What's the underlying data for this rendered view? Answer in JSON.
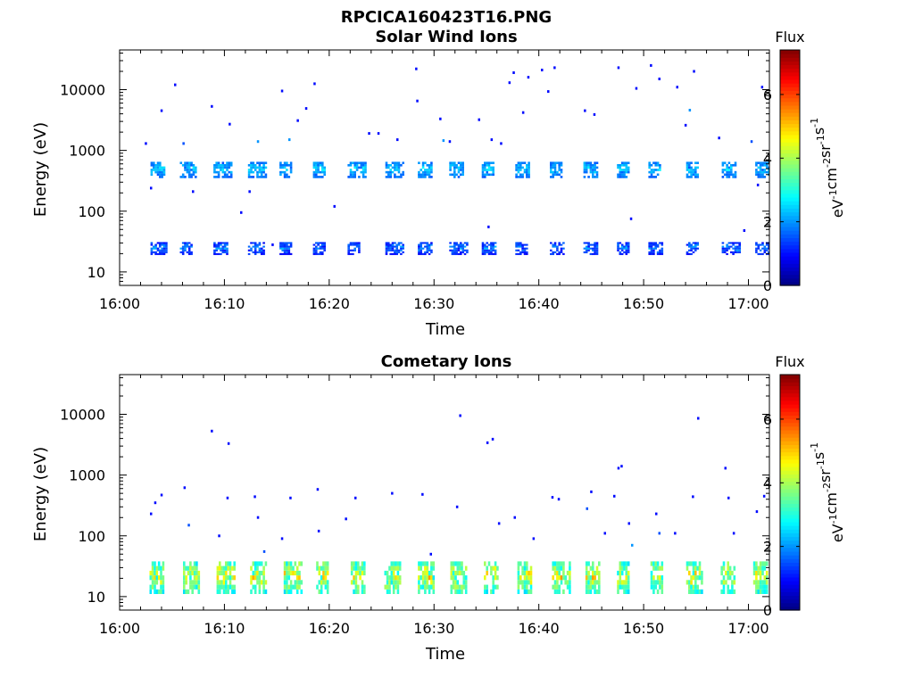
{
  "figure_title": "RPCICA160423T16.PNG",
  "chart_data": [
    {
      "type": "heatmap",
      "title": "Solar Wind Ions",
      "xlabel": "Time",
      "ylabel": "Energy (eV)",
      "x_ticks": [
        "16:00",
        "16:10",
        "16:20",
        "16:30",
        "16:40",
        "16:50",
        "17:00"
      ],
      "x_range": [
        "16:00",
        "17:02"
      ],
      "y_scale": "log",
      "y_range": [
        6,
        45000
      ],
      "y_ticks": [
        "10",
        "100",
        "1000",
        "10000"
      ],
      "colorbar": {
        "label": "Flux",
        "unit_text": "eV-1cm-2sr-1s-1",
        "range": [
          0,
          7.4
        ],
        "ticks": [
          "0",
          "2",
          "4",
          "6"
        ]
      },
      "bursts_minutes": [
        3.5,
        6.3,
        9.5,
        12.8,
        15.8,
        19.0,
        22.3,
        25.9,
        29.0,
        32.0,
        35.1,
        38.3,
        41.6,
        44.8,
        48.0,
        51.0,
        54.6,
        58.0,
        61.2
      ],
      "bands": [
        {
          "energy_low": 19,
          "energy_high": 31,
          "value_range": [
            0.8,
            2.6
          ],
          "note": "low energy band"
        },
        {
          "energy_low": 350,
          "energy_high": 650,
          "value_range": [
            1.5,
            3.0
          ],
          "note": "main solar wind band"
        }
      ],
      "scatter_points": [
        [
          2.5,
          1300,
          1
        ],
        [
          3.0,
          240,
          1
        ],
        [
          4.0,
          4500,
          1
        ],
        [
          5.3,
          12000,
          1
        ],
        [
          6.1,
          1300,
          1.5
        ],
        [
          8.8,
          5300,
          1
        ],
        [
          7.0,
          210,
          1
        ],
        [
          10.5,
          2700,
          1
        ],
        [
          11.6,
          95,
          1
        ],
        [
          12.4,
          210,
          1
        ],
        [
          13.2,
          1400,
          2
        ],
        [
          14.6,
          28,
          1
        ],
        [
          15.5,
          9500,
          1
        ],
        [
          16.2,
          1500,
          2
        ],
        [
          17.0,
          3100,
          1
        ],
        [
          17.8,
          4900,
          1
        ],
        [
          18.6,
          12500,
          1
        ],
        [
          20.5,
          120,
          1
        ],
        [
          23.8,
          1900,
          1
        ],
        [
          24.7,
          1900,
          1
        ],
        [
          26.5,
          1500,
          1
        ],
        [
          28.3,
          22000,
          1
        ],
        [
          28.4,
          6500,
          1
        ],
        [
          30.6,
          3300,
          1
        ],
        [
          30.9,
          1450,
          2
        ],
        [
          31.5,
          1400,
          1
        ],
        [
          34.3,
          3200,
          1
        ],
        [
          35.2,
          55,
          1
        ],
        [
          35.5,
          1500,
          1
        ],
        [
          36.4,
          1300,
          1
        ],
        [
          37.2,
          13000,
          1
        ],
        [
          37.6,
          19000,
          1
        ],
        [
          38.5,
          4200,
          1
        ],
        [
          39.0,
          16000,
          1
        ],
        [
          40.3,
          21000,
          1
        ],
        [
          40.9,
          9300,
          1
        ],
        [
          41.5,
          23000,
          1
        ],
        [
          44.4,
          4500,
          1
        ],
        [
          45.3,
          3900,
          1
        ],
        [
          47.6,
          23000,
          1
        ],
        [
          48.8,
          75,
          1
        ],
        [
          49.3,
          10500,
          1
        ],
        [
          50.7,
          25000,
          1
        ],
        [
          51.5,
          15000,
          1
        ],
        [
          53.2,
          11000,
          1
        ],
        [
          54.0,
          2600,
          1
        ],
        [
          54.4,
          4600,
          2
        ],
        [
          54.8,
          20000,
          1
        ],
        [
          57.2,
          1600,
          1
        ],
        [
          59.6,
          48,
          1
        ],
        [
          60.3,
          1400,
          1.5
        ],
        [
          60.9,
          270,
          1
        ],
        [
          61.3,
          11000,
          1
        ]
      ]
    },
    {
      "type": "heatmap",
      "title": "Cometary Ions",
      "xlabel": "Time",
      "ylabel": "Energy (eV)",
      "x_ticks": [
        "16:00",
        "16:10",
        "16:20",
        "16:30",
        "16:40",
        "16:50",
        "17:00"
      ],
      "x_range": [
        "16:00",
        "17:02"
      ],
      "y_scale": "log",
      "y_range": [
        6,
        45000
      ],
      "y_ticks": [
        "10",
        "100",
        "1000",
        "10000"
      ],
      "colorbar": {
        "label": "Flux",
        "unit_text": "eV-1cm-2sr-1s-1",
        "range": [
          0,
          7.4
        ],
        "ticks": [
          "0",
          "2",
          "4",
          "6"
        ]
      },
      "bursts_minutes": [
        3.4,
        6.6,
        9.8,
        13.0,
        16.2,
        19.3,
        22.6,
        25.8,
        29.0,
        32.1,
        35.3,
        38.5,
        41.8,
        45.0,
        48.0,
        51.2,
        54.6,
        57.9,
        61.0
      ],
      "bands": [
        {
          "energy_low": 11,
          "energy_high": 38,
          "value_range": [
            2.5,
            5.8
          ],
          "note": "cometary ion band"
        }
      ],
      "scatter_points": [
        [
          3.0,
          230,
          1
        ],
        [
          3.4,
          350,
          1
        ],
        [
          4.0,
          470,
          1
        ],
        [
          6.2,
          620,
          1
        ],
        [
          6.6,
          150,
          1.5
        ],
        [
          8.8,
          5300,
          1
        ],
        [
          9.5,
          100,
          1
        ],
        [
          10.4,
          3300,
          1
        ],
        [
          10.3,
          420,
          1
        ],
        [
          12.9,
          440,
          1
        ],
        [
          13.2,
          200,
          1
        ],
        [
          13.8,
          55,
          1.5
        ],
        [
          15.5,
          90,
          1
        ],
        [
          16.3,
          420,
          1
        ],
        [
          18.9,
          580,
          1
        ],
        [
          19.0,
          120,
          1
        ],
        [
          21.6,
          190,
          1
        ],
        [
          22.5,
          420,
          1
        ],
        [
          26.0,
          500,
          1
        ],
        [
          28.9,
          480,
          1
        ],
        [
          29.7,
          50,
          1
        ],
        [
          32.2,
          300,
          1
        ],
        [
          32.5,
          9500,
          1
        ],
        [
          35.1,
          3400,
          1
        ],
        [
          35.6,
          3900,
          1
        ],
        [
          36.2,
          160,
          1
        ],
        [
          37.7,
          200,
          1
        ],
        [
          39.5,
          90,
          1
        ],
        [
          41.3,
          430,
          1
        ],
        [
          41.9,
          400,
          1
        ],
        [
          44.6,
          280,
          1.5
        ],
        [
          45.0,
          530,
          1
        ],
        [
          46.3,
          110,
          1
        ],
        [
          47.2,
          450,
          1
        ],
        [
          47.6,
          1300,
          1
        ],
        [
          47.9,
          1400,
          1
        ],
        [
          48.6,
          160,
          1
        ],
        [
          48.9,
          70,
          2
        ],
        [
          51.2,
          230,
          1
        ],
        [
          51.5,
          110,
          1.5
        ],
        [
          53.0,
          110,
          1
        ],
        [
          54.7,
          440,
          1
        ],
        [
          55.2,
          8600,
          1
        ],
        [
          57.8,
          1300,
          1
        ],
        [
          58.1,
          420,
          1
        ],
        [
          58.6,
          110,
          1
        ],
        [
          60.8,
          250,
          1
        ],
        [
          61.5,
          450,
          1
        ]
      ]
    }
  ]
}
